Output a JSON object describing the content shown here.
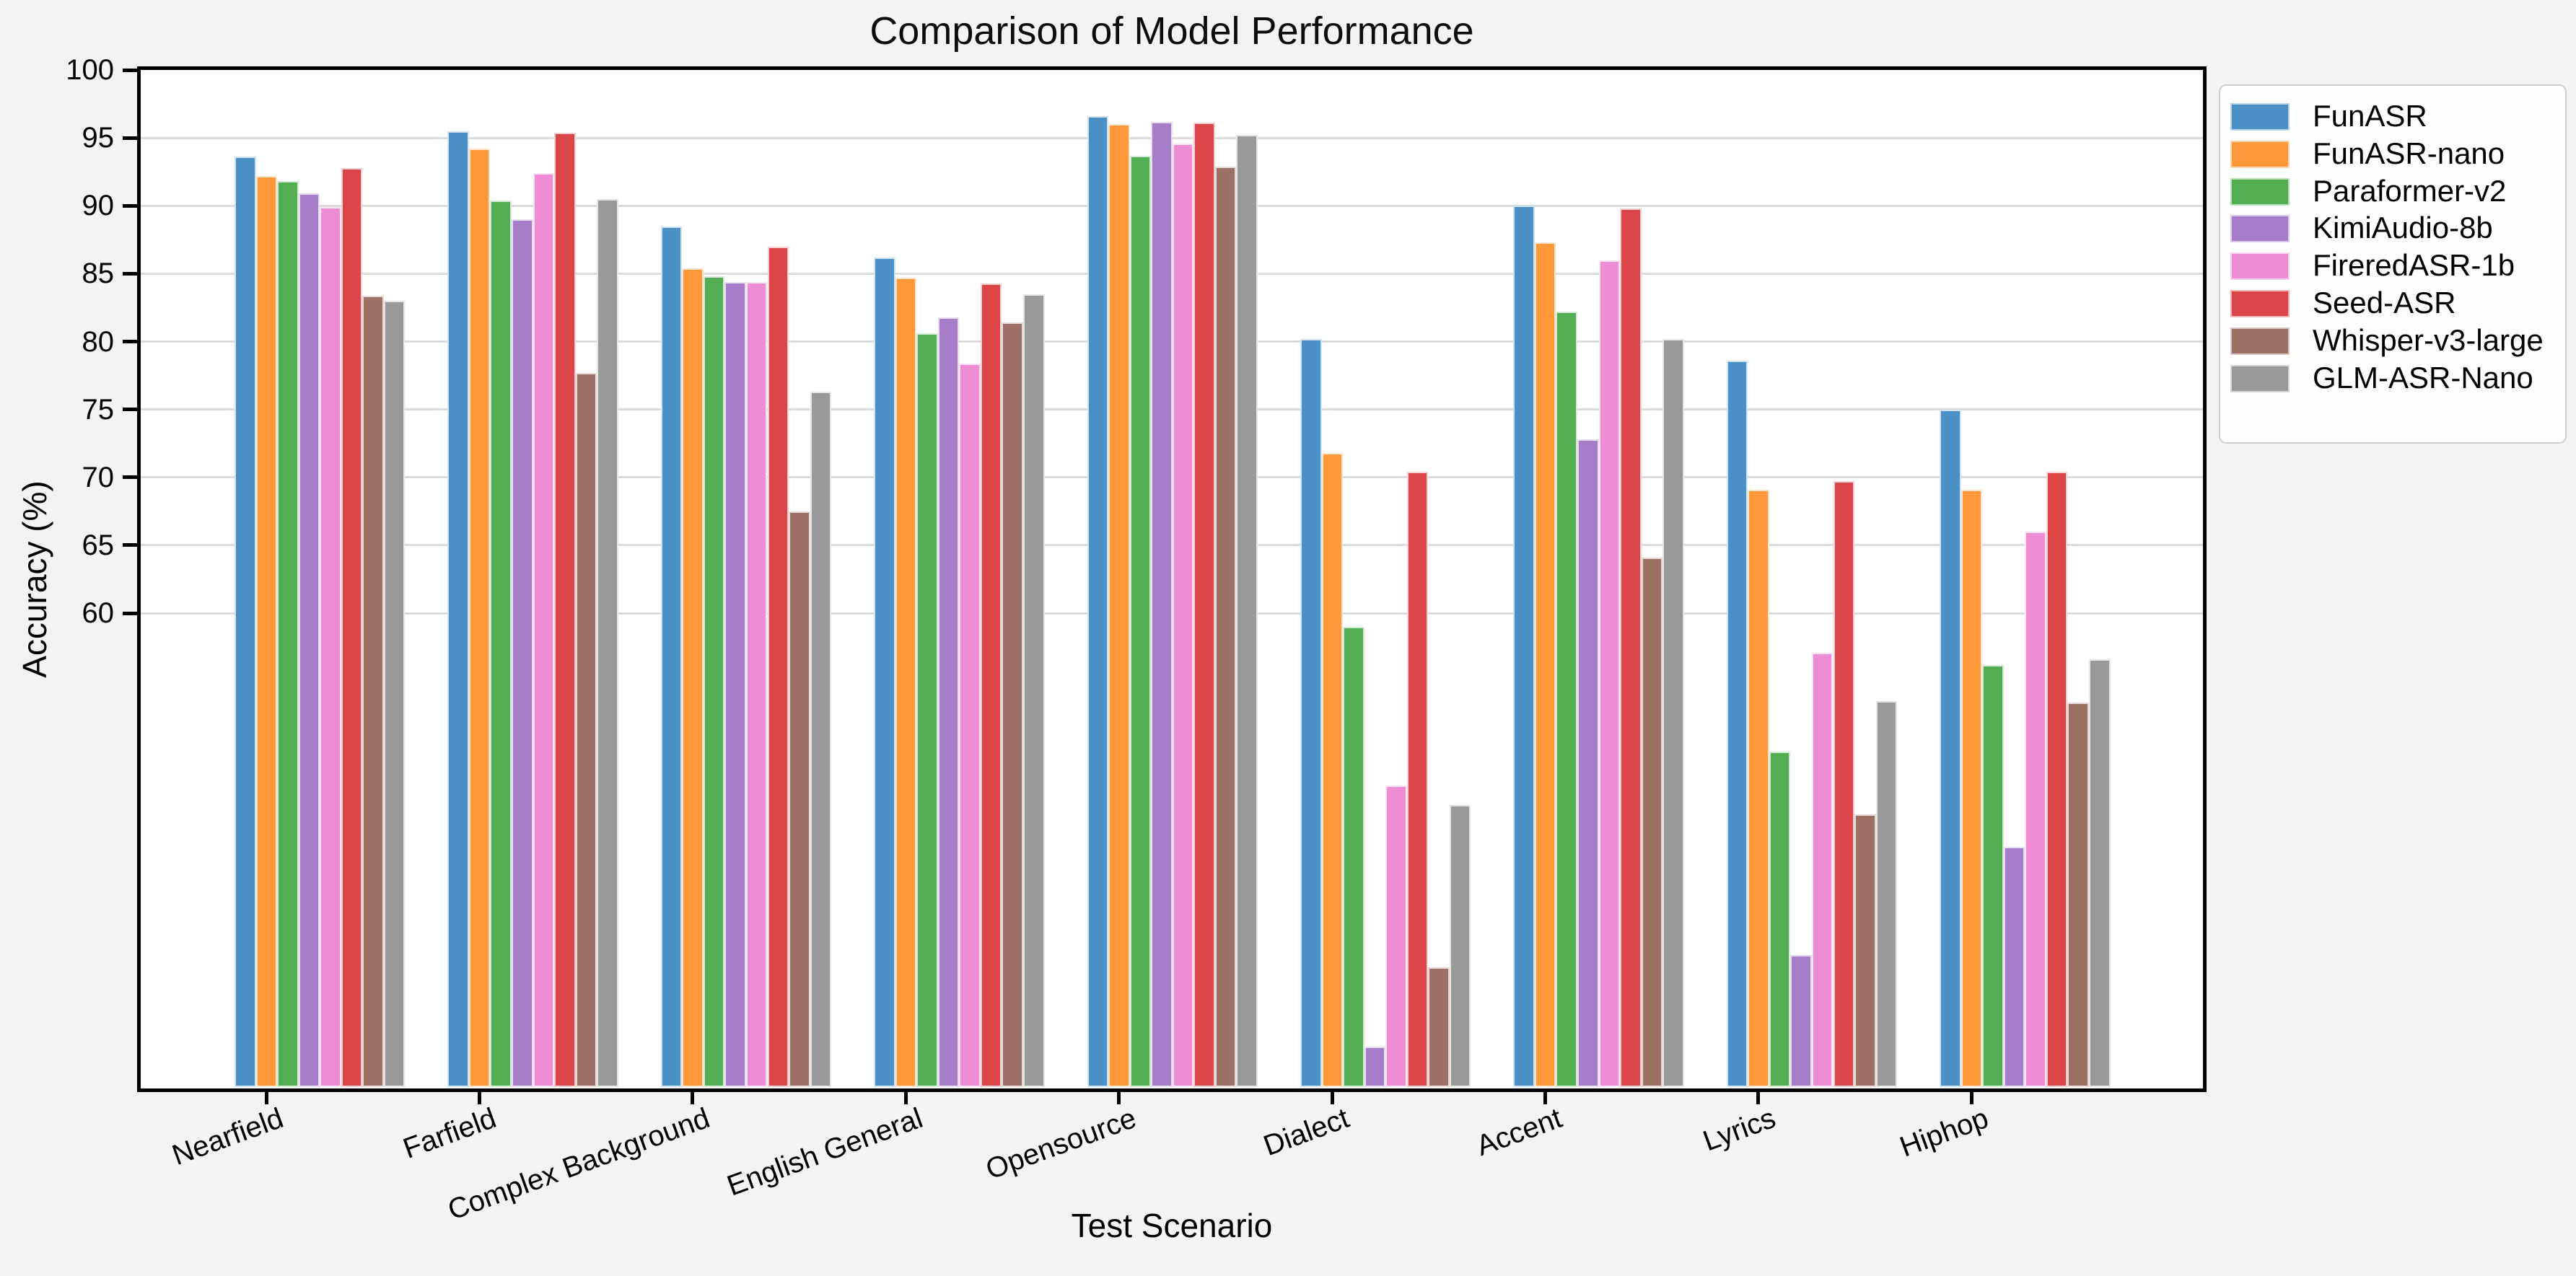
{
  "title": "Comparison of Model Performance",
  "chart_data": {
    "type": "bar",
    "title": "Comparison of Model Performance",
    "xlabel": "Test Scenario",
    "ylabel": "Accuracy (%)",
    "ylim": [
      25,
      100
    ],
    "yticks": [
      100,
      95,
      90,
      85,
      80,
      75,
      70,
      65,
      60
    ],
    "grid": "horizontal gridlines at labeled yticks only",
    "legend_position": "outside upper right",
    "background": {
      "figure": "#f3f3f2",
      "axes": "#ffffff",
      "gridline": "#dbdbdb",
      "spine": "#000000"
    },
    "categories": [
      "Nearfield",
      "Farfield",
      "Complex Background",
      "English General",
      "Opensource",
      "Dialect",
      "Accent",
      "Lyrics",
      "Hiphop"
    ],
    "series": [
      {
        "name": "FunASR",
        "color": "#4A90C4",
        "values": [
          93.6,
          95.5,
          88.5,
          86.2,
          96.6,
          80.2,
          90.0,
          78.6,
          75.0
        ]
      },
      {
        "name": "FunASR-nano",
        "color": "#FF9838",
        "values": [
          92.2,
          94.2,
          85.4,
          84.7,
          96.0,
          71.8,
          87.3,
          69.1,
          69.1
        ]
      },
      {
        "name": "Paraformer-v2",
        "color": "#53AD53",
        "values": [
          91.8,
          90.4,
          84.8,
          80.6,
          93.7,
          59.0,
          82.2,
          49.8,
          56.2
        ]
      },
      {
        "name": "KimiAudio-8b",
        "color": "#A47CC8",
        "values": [
          90.9,
          89.0,
          84.4,
          81.8,
          96.2,
          28.1,
          72.8,
          34.8,
          42.8
        ]
      },
      {
        "name": "FireredASR-1b",
        "color": "#EE8CD4",
        "values": [
          89.9,
          92.4,
          84.4,
          78.4,
          94.6,
          47.3,
          86.0,
          57.1,
          66.0
        ]
      },
      {
        "name": "Seed-ASR",
        "color": "#DA4547",
        "values": [
          92.8,
          95.4,
          87.0,
          84.3,
          96.1,
          70.4,
          89.8,
          69.7,
          70.4
        ]
      },
      {
        "name": "Whisper-v3-large",
        "color": "#9C7064",
        "values": [
          83.4,
          77.7,
          67.5,
          81.4,
          92.9,
          33.9,
          64.1,
          45.2,
          53.4
        ]
      },
      {
        "name": "GLM-ASR-Nano",
        "color": "#999999",
        "values": [
          83.0,
          90.5,
          76.3,
          83.5,
          95.2,
          45.9,
          80.2,
          53.5,
          56.6
        ]
      }
    ]
  }
}
